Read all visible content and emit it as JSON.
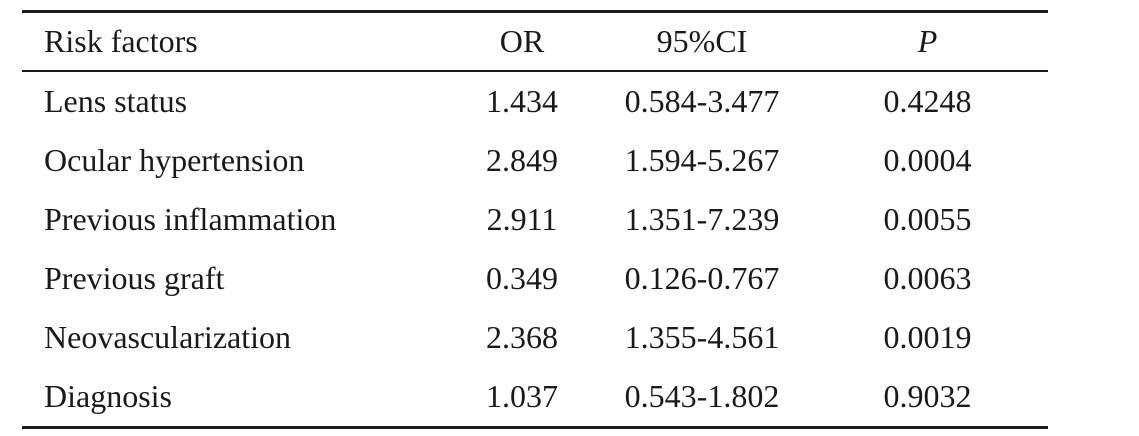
{
  "table": {
    "headers": {
      "factor": "Risk factors",
      "or": "OR",
      "ci": "95%CI",
      "p": "P"
    },
    "rows": [
      {
        "factor": "Lens status",
        "or": "1.434",
        "ci": "0.584-3.477",
        "p": "0.4248"
      },
      {
        "factor": "Ocular hypertension",
        "or": "2.849",
        "ci": "1.594-5.267",
        "p": "0.0004"
      },
      {
        "factor": "Previous inflammation",
        "or": "2.911",
        "ci": "1.351-7.239",
        "p": "0.0055"
      },
      {
        "factor": "Previous graft",
        "or": "0.349",
        "ci": "0.126-0.767",
        "p": "0.0063"
      },
      {
        "factor": "Neovascularization",
        "or": "2.368",
        "ci": "1.355-4.561",
        "p": "0.0019"
      },
      {
        "factor": "Diagnosis",
        "or": "1.037",
        "ci": "0.543-1.802",
        "p": "0.9032"
      }
    ]
  }
}
